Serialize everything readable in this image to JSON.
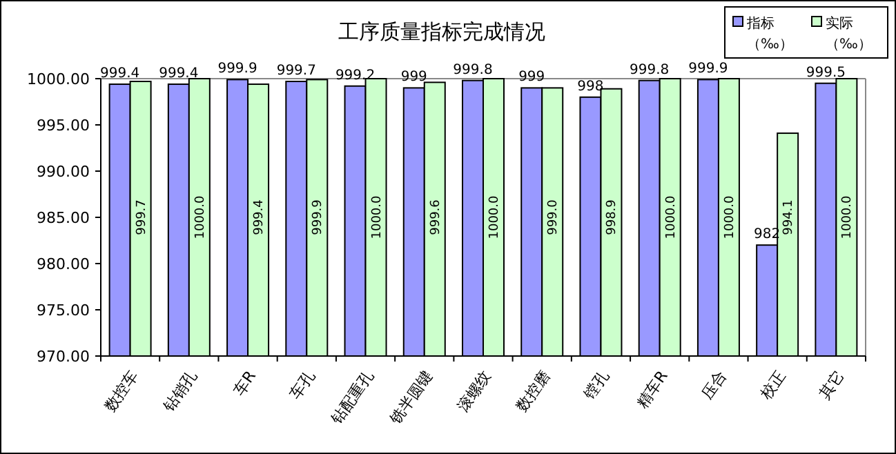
{
  "chart_data": {
    "type": "bar",
    "title": "工序质量指标完成情况",
    "categories": [
      "数控车",
      "钻销孔",
      "车R",
      "车孔",
      "钻配重孔",
      "铣半圆键",
      "滚螺纹",
      "数控磨",
      "镗孔",
      "精车R",
      "压合",
      "校正",
      "其它"
    ],
    "series": [
      {
        "name": "指标（‰）",
        "color": "#9999ff",
        "values": [
          999.4,
          999.4,
          999.9,
          999.7,
          999.2,
          999,
          999.8,
          999,
          998,
          999.8,
          999.9,
          982,
          999.5
        ],
        "value_labels": [
          "999.4",
          "999.4",
          "999.9",
          "999.7",
          "999.2",
          "999",
          "999.8",
          "999",
          "998",
          "999.8",
          "999.9",
          "982",
          "999.5"
        ]
      },
      {
        "name": "实际（‰）",
        "color": "#ccffcc",
        "values": [
          999.7,
          1000.0,
          999.4,
          999.9,
          1000.0,
          999.6,
          1000.0,
          999.0,
          998.9,
          1000.0,
          1000.0,
          994.1,
          1000.0
        ],
        "value_labels": [
          "999.7",
          "1000.0",
          "999.4",
          "999.9",
          "1000.0",
          "999.6",
          "1000.0",
          "999.0",
          "998.9",
          "1000.0",
          "1000.0",
          "994.1",
          "1000.0"
        ]
      }
    ],
    "ylim": [
      970,
      1000
    ],
    "yticks": [
      {
        "value": 970,
        "label": "970.00"
      },
      {
        "value": 975,
        "label": "975.00"
      },
      {
        "value": 980,
        "label": "980.00"
      },
      {
        "value": 985,
        "label": "985.00"
      },
      {
        "value": 990,
        "label": "990.00"
      },
      {
        "value": 995,
        "label": "995.00"
      },
      {
        "value": 1000,
        "label": "1000.00"
      }
    ],
    "grid": false,
    "legend": "top right"
  }
}
